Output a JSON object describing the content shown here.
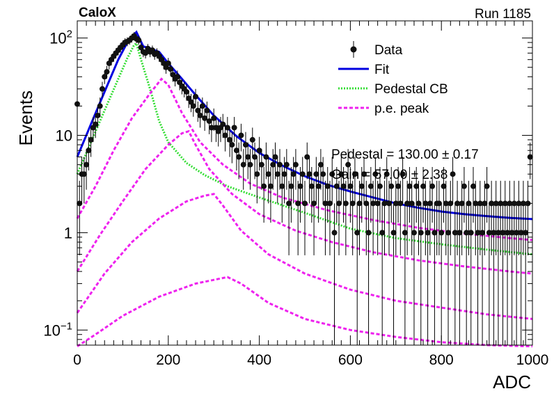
{
  "chart_data": {
    "type": "scatter",
    "title_left": "CaloX",
    "title_right": "Run 1185",
    "xlabel": "ADC",
    "ylabel": "Events",
    "xlim": [
      0,
      1000
    ],
    "ylim": [
      0.07,
      150
    ],
    "y_scale": "log",
    "grid": false,
    "legend_position": "top-right",
    "x_ticks": [
      0,
      200,
      400,
      600,
      800,
      1000
    ],
    "y_ticks": [
      {
        "value": 0.1,
        "base": "10",
        "exp": "−1"
      },
      {
        "value": 1,
        "text": "1"
      },
      {
        "value": 10,
        "text": "10"
      },
      {
        "value": 100,
        "base": "10",
        "exp": "2"
      }
    ],
    "legend": [
      {
        "label": "Data",
        "style": "marker",
        "color": "#000000"
      },
      {
        "label": "Fit",
        "style": "solid",
        "color": "#0000e0"
      },
      {
        "label": "Pedestal CB",
        "style": "dotted",
        "color": "#33dd33"
      },
      {
        "label": "p.e. peak",
        "style": "dashed",
        "color": "#ee22ee"
      }
    ],
    "annotations": [
      "Pedestal = 130.00 ± 0.17",
      "Gain = 57.00 ± 2.38"
    ],
    "series": [
      {
        "name": "Data",
        "kind": "points",
        "color": "#000000",
        "points": [
          [
            0,
            21
          ],
          [
            5,
            2
          ],
          [
            10,
            4
          ],
          [
            15,
            4
          ],
          [
            20,
            5
          ],
          [
            25,
            7
          ],
          [
            30,
            9
          ],
          [
            35,
            12
          ],
          [
            40,
            13
          ],
          [
            45,
            16
          ],
          [
            50,
            20
          ],
          [
            55,
            30
          ],
          [
            60,
            40
          ],
          [
            65,
            45
          ],
          [
            70,
            55
          ],
          [
            75,
            60
          ],
          [
            80,
            65
          ],
          [
            85,
            70
          ],
          [
            90,
            75
          ],
          [
            95,
            80
          ],
          [
            100,
            85
          ],
          [
            105,
            90
          ],
          [
            110,
            92
          ],
          [
            115,
            95
          ],
          [
            120,
            100
          ],
          [
            125,
            105
          ],
          [
            130,
            98
          ],
          [
            135,
            95
          ],
          [
            140,
            80
          ],
          [
            145,
            72
          ],
          [
            150,
            70
          ],
          [
            155,
            78
          ],
          [
            160,
            72
          ],
          [
            165,
            75
          ],
          [
            170,
            68
          ],
          [
            175,
            70
          ],
          [
            180,
            65
          ],
          [
            185,
            60
          ],
          [
            190,
            55
          ],
          [
            195,
            50
          ],
          [
            200,
            55
          ],
          [
            205,
            48
          ],
          [
            210,
            42
          ],
          [
            215,
            38
          ],
          [
            220,
            40
          ],
          [
            225,
            35
          ],
          [
            230,
            32
          ],
          [
            235,
            30
          ],
          [
            240,
            28
          ],
          [
            245,
            24
          ],
          [
            250,
            22
          ],
          [
            255,
            20
          ],
          [
            260,
            25
          ],
          [
            265,
            18
          ],
          [
            270,
            16
          ],
          [
            275,
            20
          ],
          [
            280,
            15
          ],
          [
            285,
            18
          ],
          [
            290,
            14
          ],
          [
            295,
            12
          ],
          [
            300,
            15
          ],
          [
            305,
            12
          ],
          [
            310,
            11
          ],
          [
            315,
            12
          ],
          [
            320,
            13
          ],
          [
            325,
            10
          ],
          [
            330,
            12
          ],
          [
            335,
            9
          ],
          [
            340,
            8
          ],
          [
            345,
            12
          ],
          [
            350,
            7
          ],
          [
            355,
            6
          ],
          [
            360,
            10
          ],
          [
            365,
            5
          ],
          [
            370,
            8
          ],
          [
            375,
            6
          ],
          [
            380,
            5
          ],
          [
            385,
            9
          ],
          [
            390,
            6
          ],
          [
            395,
            4
          ],
          [
            400,
            7
          ],
          [
            405,
            5
          ],
          [
            410,
            3
          ],
          [
            415,
            6
          ],
          [
            420,
            4
          ],
          [
            425,
            3
          ],
          [
            430,
            5
          ],
          [
            435,
            6
          ],
          [
            440,
            4
          ],
          [
            445,
            5
          ],
          [
            450,
            3
          ],
          [
            455,
            4
          ],
          [
            460,
            5
          ],
          [
            465,
            2
          ],
          [
            470,
            3
          ],
          [
            475,
            4
          ],
          [
            480,
            5
          ],
          [
            485,
            2
          ],
          [
            490,
            3
          ],
          [
            495,
            4
          ],
          [
            500,
            2
          ],
          [
            505,
            6
          ],
          [
            510,
            4
          ],
          [
            515,
            3
          ],
          [
            520,
            2
          ],
          [
            525,
            4
          ],
          [
            530,
            3
          ],
          [
            535,
            5
          ],
          [
            540,
            4
          ],
          [
            545,
            2
          ],
          [
            550,
            3
          ],
          [
            555,
            2
          ],
          [
            560,
            4
          ],
          [
            565,
            1
          ],
          [
            570,
            3
          ],
          [
            575,
            2
          ],
          [
            580,
            4
          ],
          [
            585,
            3
          ],
          [
            590,
            2
          ],
          [
            595,
            5
          ],
          [
            600,
            3
          ],
          [
            605,
            2
          ],
          [
            610,
            4
          ],
          [
            615,
            1
          ],
          [
            620,
            2
          ],
          [
            625,
            3
          ],
          [
            630,
            4
          ],
          [
            635,
            2
          ],
          [
            640,
            1
          ],
          [
            645,
            3
          ],
          [
            650,
            2
          ],
          [
            655,
            4
          ],
          [
            660,
            2
          ],
          [
            665,
            3
          ],
          [
            670,
            1
          ],
          [
            675,
            2
          ],
          [
            680,
            4
          ],
          [
            685,
            2
          ],
          [
            690,
            3
          ],
          [
            695,
            1
          ],
          [
            700,
            2
          ],
          [
            705,
            3
          ],
          [
            710,
            2
          ],
          [
            715,
            4
          ],
          [
            720,
            1
          ],
          [
            725,
            2
          ],
          [
            730,
            3
          ],
          [
            735,
            2
          ],
          [
            740,
            1
          ],
          [
            745,
            3
          ],
          [
            750,
            2
          ],
          [
            755,
            1
          ],
          [
            760,
            3
          ],
          [
            765,
            2
          ],
          [
            770,
            1
          ],
          [
            775,
            2
          ],
          [
            780,
            3
          ],
          [
            785,
            1
          ],
          [
            790,
            2
          ],
          [
            795,
            2
          ],
          [
            800,
            1
          ],
          [
            805,
            3
          ],
          [
            810,
            2
          ],
          [
            815,
            1
          ],
          [
            820,
            2
          ],
          [
            825,
            4
          ],
          [
            830,
            1
          ],
          [
            835,
            2
          ],
          [
            840,
            1
          ],
          [
            845,
            2
          ],
          [
            850,
            3
          ],
          [
            855,
            1
          ],
          [
            860,
            2
          ],
          [
            865,
            1
          ],
          [
            870,
            3
          ],
          [
            875,
            2
          ],
          [
            880,
            1
          ],
          [
            885,
            2
          ],
          [
            890,
            1
          ],
          [
            895,
            2
          ],
          [
            900,
            3
          ],
          [
            905,
            1
          ],
          [
            910,
            2
          ],
          [
            915,
            1
          ],
          [
            920,
            2
          ],
          [
            925,
            1
          ],
          [
            930,
            2
          ],
          [
            935,
            1
          ],
          [
            940,
            2
          ],
          [
            945,
            1
          ],
          [
            950,
            2
          ],
          [
            955,
            1
          ],
          [
            960,
            2
          ],
          [
            965,
            1
          ],
          [
            970,
            2
          ],
          [
            975,
            1
          ],
          [
            980,
            2
          ],
          [
            985,
            1
          ],
          [
            990,
            2
          ],
          [
            995,
            6
          ]
        ]
      },
      {
        "name": "Fit",
        "kind": "line",
        "color": "#0000e0",
        "points": [
          [
            0,
            6
          ],
          [
            30,
            13
          ],
          [
            60,
            28
          ],
          [
            90,
            60
          ],
          [
            110,
            90
          ],
          [
            130,
            115
          ],
          [
            145,
            82
          ],
          [
            160,
            78
          ],
          [
            180,
            72
          ],
          [
            200,
            55
          ],
          [
            230,
            38
          ],
          [
            260,
            26
          ],
          [
            300,
            16
          ],
          [
            350,
            9.8
          ],
          [
            400,
            6.6
          ],
          [
            450,
            4.9
          ],
          [
            500,
            3.8
          ],
          [
            550,
            3.1
          ],
          [
            600,
            2.65
          ],
          [
            650,
            2.3
          ],
          [
            700,
            2.0
          ],
          [
            750,
            1.8
          ],
          [
            800,
            1.65
          ],
          [
            850,
            1.55
          ],
          [
            900,
            1.48
          ],
          [
            950,
            1.42
          ],
          [
            1000,
            1.38
          ]
        ]
      },
      {
        "name": "Pedestal CB",
        "kind": "dotted",
        "color": "#33dd33",
        "points": [
          [
            0,
            4
          ],
          [
            30,
            8.5
          ],
          [
            60,
            18
          ],
          [
            90,
            38
          ],
          [
            110,
            62
          ],
          [
            125,
            85
          ],
          [
            130,
            88
          ],
          [
            140,
            60
          ],
          [
            160,
            30
          ],
          [
            180,
            14
          ],
          [
            200,
            8.5
          ],
          [
            240,
            5.2
          ],
          [
            280,
            3.9
          ],
          [
            330,
            3.0
          ],
          [
            400,
            2.3
          ],
          [
            500,
            1.6
          ],
          [
            600,
            1.1
          ],
          [
            700,
            0.88
          ],
          [
            800,
            0.76
          ],
          [
            900,
            0.67
          ],
          [
            1000,
            0.6
          ]
        ]
      },
      {
        "name": "p.e. peak n=1",
        "kind": "dashed",
        "color": "#ee22ee",
        "points": [
          [
            0,
            1.4
          ],
          [
            40,
            3
          ],
          [
            80,
            7
          ],
          [
            120,
            15
          ],
          [
            160,
            27
          ],
          [
            185,
            38
          ],
          [
            200,
            33
          ],
          [
            230,
            17
          ],
          [
            270,
            8.5
          ],
          [
            320,
            5
          ],
          [
            380,
            3.2
          ],
          [
            450,
            2.3
          ],
          [
            550,
            1.7
          ],
          [
            650,
            1.35
          ],
          [
            750,
            1.12
          ],
          [
            850,
            0.98
          ],
          [
            950,
            0.88
          ],
          [
            1000,
            0.84
          ]
        ]
      },
      {
        "name": "p.e. peak n=2",
        "kind": "dashed",
        "color": "#ee22ee",
        "points": [
          [
            0,
            0.4
          ],
          [
            50,
            0.95
          ],
          [
            100,
            2.1
          ],
          [
            150,
            4.5
          ],
          [
            200,
            8
          ],
          [
            230,
            10.5
          ],
          [
            245,
            11
          ],
          [
            260,
            8
          ],
          [
            290,
            4.5
          ],
          [
            340,
            2.5
          ],
          [
            400,
            1.55
          ],
          [
            480,
            1.05
          ],
          [
            560,
            0.8
          ],
          [
            650,
            0.63
          ],
          [
            750,
            0.52
          ],
          [
            850,
            0.45
          ],
          [
            950,
            0.4
          ],
          [
            1000,
            0.38
          ]
        ]
      },
      {
        "name": "p.e. peak n=3",
        "kind": "dashed",
        "color": "#ee22ee",
        "points": [
          [
            0,
            0.15
          ],
          [
            60,
            0.38
          ],
          [
            120,
            0.8
          ],
          [
            180,
            1.4
          ],
          [
            240,
            2.1
          ],
          [
            280,
            2.4
          ],
          [
            300,
            2.5
          ],
          [
            320,
            1.9
          ],
          [
            360,
            1.05
          ],
          [
            420,
            0.6
          ],
          [
            500,
            0.38
          ],
          [
            600,
            0.26
          ],
          [
            700,
            0.2
          ],
          [
            800,
            0.17
          ],
          [
            900,
            0.145
          ],
          [
            1000,
            0.13
          ]
        ]
      },
      {
        "name": "p.e. peak n=4",
        "kind": "dashed",
        "color": "#ee22ee",
        "points": [
          [
            0,
            0.068
          ],
          [
            40,
            0.09
          ],
          [
            100,
            0.14
          ],
          [
            180,
            0.22
          ],
          [
            260,
            0.3
          ],
          [
            330,
            0.35
          ],
          [
            360,
            0.3
          ],
          [
            420,
            0.19
          ],
          [
            500,
            0.13
          ],
          [
            600,
            0.1
          ],
          [
            700,
            0.085
          ],
          [
            800,
            0.075
          ],
          [
            900,
            0.07
          ],
          [
            1000,
            0.068
          ]
        ]
      }
    ]
  }
}
